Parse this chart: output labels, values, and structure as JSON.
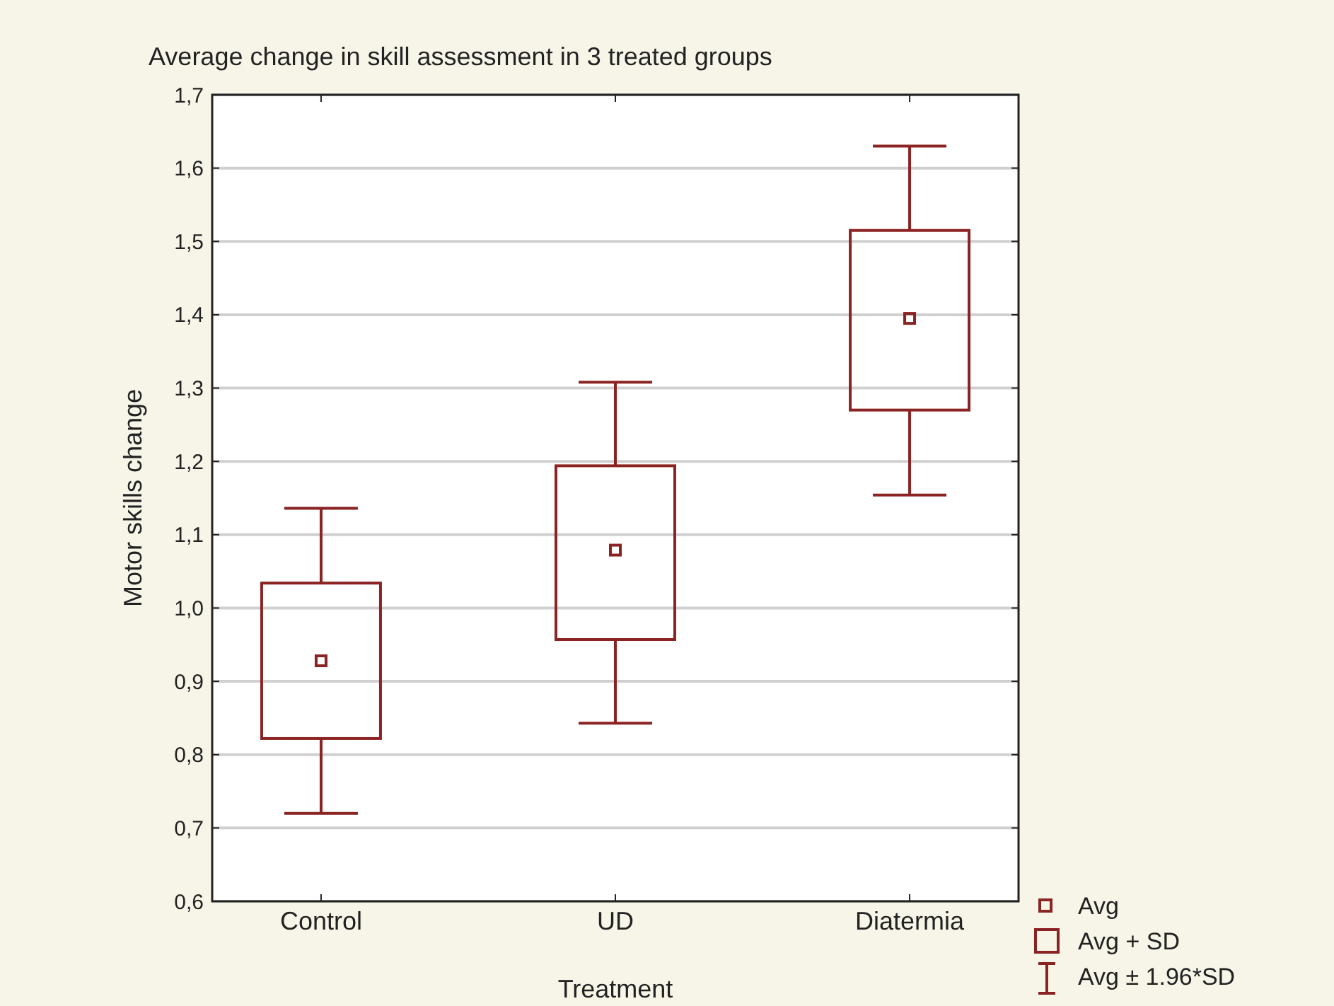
{
  "chart_data": {
    "type": "box",
    "title": "Average change in skill assessment in 3 treated groups",
    "xlabel": "Treatment",
    "ylabel": "Motor skills change",
    "categories": [
      "Control",
      "UD",
      "Diatermia"
    ],
    "series": [
      {
        "color": "#8b2323",
        "boxes": [
          {
            "low": 0.72,
            "q1": 0.822,
            "median": 0.928,
            "q3": 1.034,
            "high": 1.136
          },
          {
            "low": 0.843,
            "q1": 0.957,
            "median": 1.079,
            "q3": 1.194,
            "high": 1.308
          },
          {
            "low": 1.154,
            "q1": 1.27,
            "median": 1.395,
            "q3": 1.515,
            "high": 1.63
          }
        ]
      }
    ],
    "ylim": [
      0.6,
      1.7
    ],
    "yticks": [
      {
        "value": 0.6,
        "label": "0,6"
      },
      {
        "value": 0.7,
        "label": "0,7"
      },
      {
        "value": 0.8,
        "label": "0,8"
      },
      {
        "value": 0.9,
        "label": "0,9"
      },
      {
        "value": 1.0,
        "label": "1,0"
      },
      {
        "value": 1.1,
        "label": "1,1"
      },
      {
        "value": 1.2,
        "label": "1,2"
      },
      {
        "value": 1.3,
        "label": "1,3"
      },
      {
        "value": 1.4,
        "label": "1,4"
      },
      {
        "value": 1.5,
        "label": "1,5"
      },
      {
        "value": 1.6,
        "label": "1,6"
      },
      {
        "value": 1.7,
        "label": "1,7"
      }
    ],
    "grid": "y",
    "annotations": [
      "Avg",
      "Avg + SD",
      "Avg ± 1.96*SD"
    ]
  }
}
